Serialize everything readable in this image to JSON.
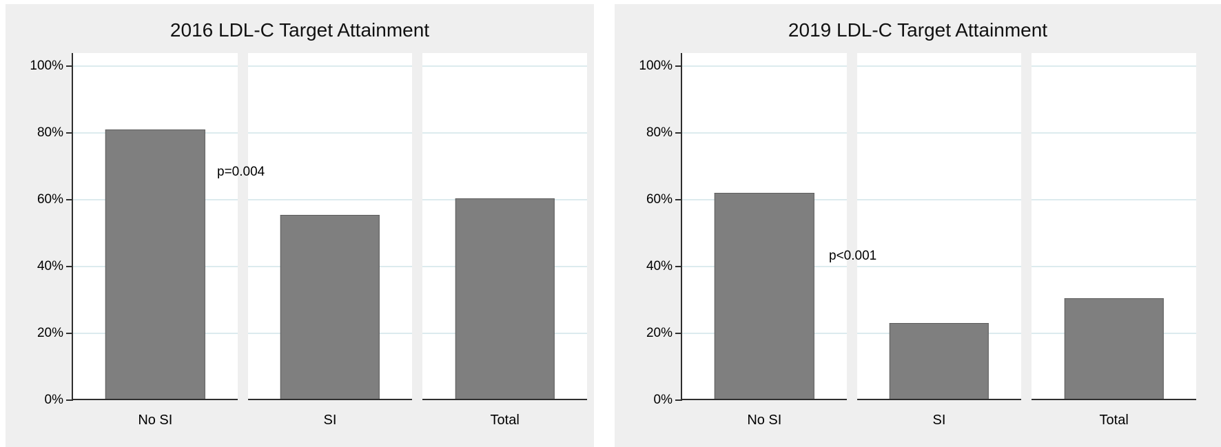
{
  "colors": {
    "figure_bg": "#efefef",
    "panel_bg": "#ffffff",
    "gridline": "#dcebee",
    "axis": "#2e2e2e",
    "bar_fill": "#7f7f7f",
    "bar_border": "#5c5c5c",
    "text": "#000000"
  },
  "chart_data": [
    {
      "type": "bar",
      "title": "2016 LDL-C Target Attainment",
      "categories": [
        "No SI",
        "SI",
        "Total"
      ],
      "values": [
        81,
        55.5,
        60.5
      ],
      "annotation": "p=0.004",
      "xlabel": "",
      "ylabel": "",
      "ylim": [
        0,
        100
      ],
      "y_tick_labels": [
        "0%",
        "20%",
        "40%",
        "60%",
        "80%",
        "100%"
      ],
      "grid": true,
      "legend": "none"
    },
    {
      "type": "bar",
      "title": "2019 LDL-C Target Attainment",
      "categories": [
        "No SI",
        "SI",
        "Total"
      ],
      "values": [
        62,
        23,
        30.5
      ],
      "annotation": "p<0.001",
      "xlabel": "",
      "ylabel": "",
      "ylim": [
        0,
        100
      ],
      "y_tick_labels": [
        "0%",
        "20%",
        "40%",
        "60%",
        "80%",
        "100%"
      ],
      "grid": true,
      "legend": "none"
    }
  ]
}
